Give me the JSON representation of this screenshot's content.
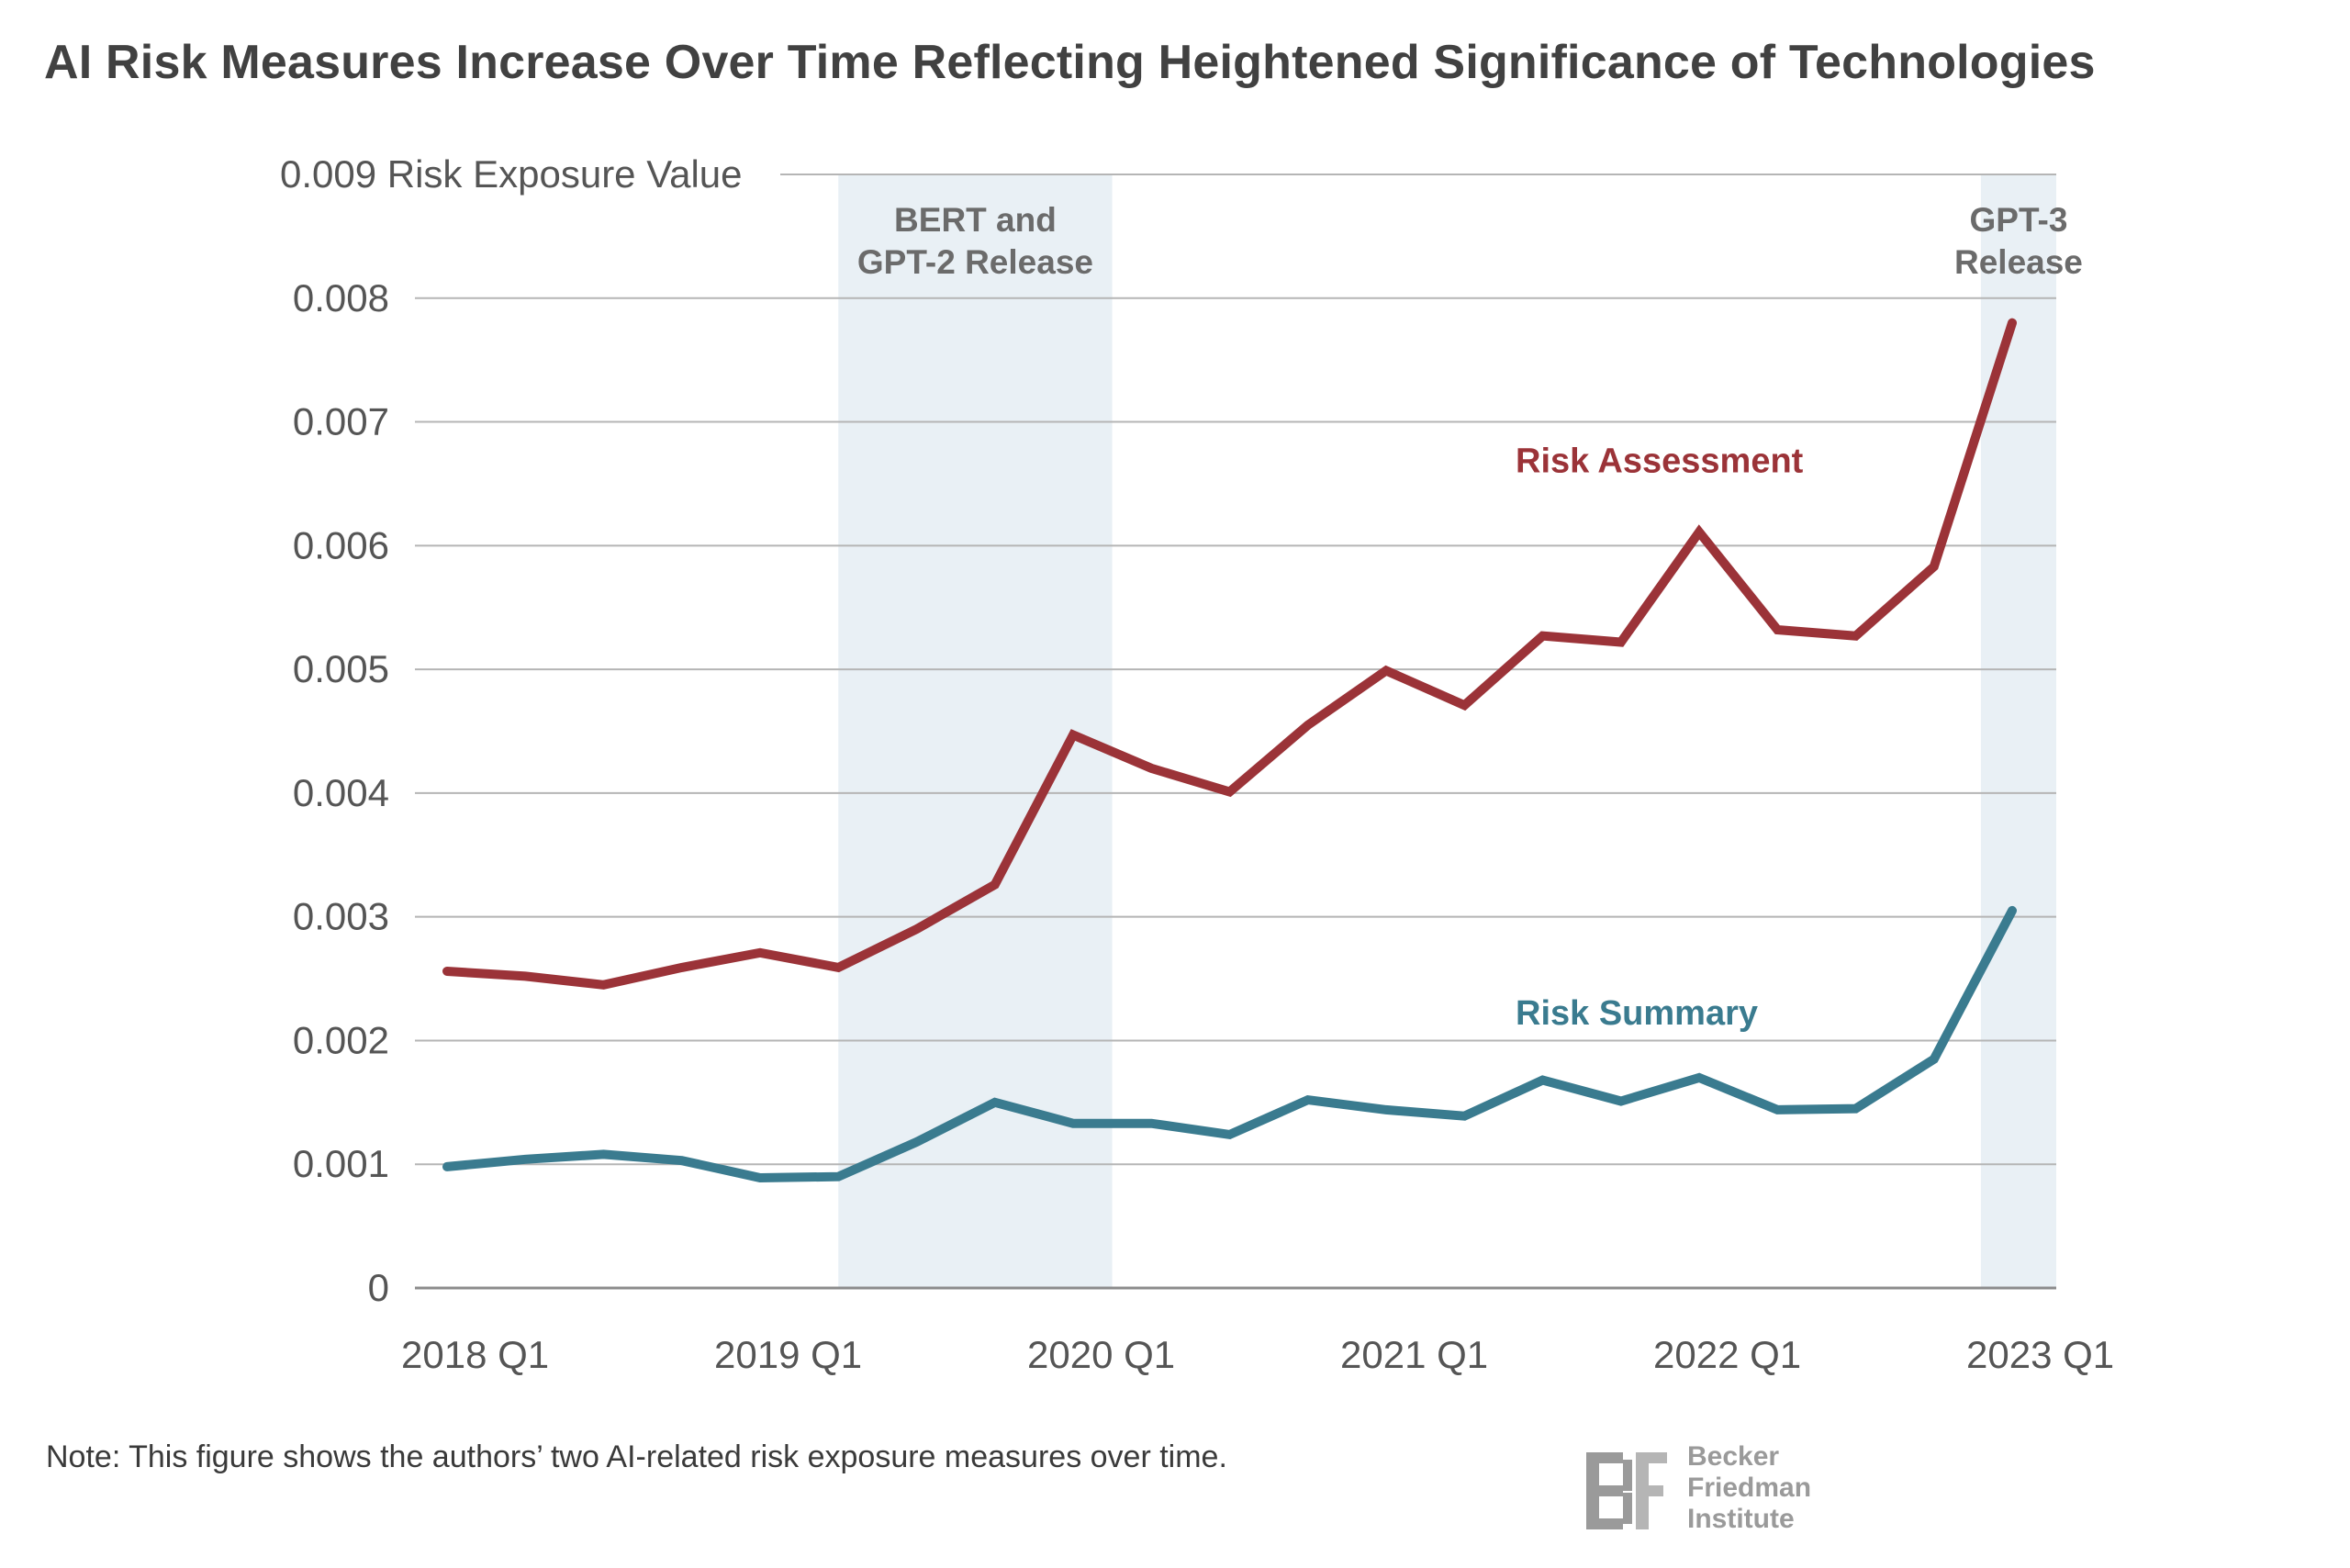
{
  "title": "AI Risk Measures Increase Over Time Reflecting Heightened Significance of Technologies",
  "note": "Note: This figure shows the authors’ two AI-related risk exposure measures over time.",
  "logo": {
    "line1": "Becker",
    "line2": "Friedman",
    "line3": "Institute"
  },
  "colors": {
    "assessment": "#9b3338",
    "summary": "#3a7b8f",
    "shade": "#e9f0f5",
    "grid": "#b5b5b5",
    "text": "#555555"
  },
  "chart_data": {
    "type": "line",
    "title": "AI Risk Measures Increase Over Time Reflecting Heightened Significance of Technologies",
    "xlabel": "",
    "ylabel": "Risk Exposure Value",
    "y_top_label": "0.009 Risk Exposure Value",
    "ylim": [
      0,
      0.009
    ],
    "yticks": [
      {
        "value": 0.009,
        "label": "0.009 Risk Exposure Value"
      },
      {
        "value": 0.008,
        "label": "0.008"
      },
      {
        "value": 0.007,
        "label": "0.007"
      },
      {
        "value": 0.006,
        "label": "0.006"
      },
      {
        "value": 0.005,
        "label": "0.005"
      },
      {
        "value": 0.004,
        "label": "0.004"
      },
      {
        "value": 0.003,
        "label": "0.003"
      },
      {
        "value": 0.002,
        "label": "0.002"
      },
      {
        "value": 0.001,
        "label": "0.001"
      },
      {
        "value": 0,
        "label": "0"
      }
    ],
    "x": [
      "2018 Q1",
      "2018 Q2",
      "2018 Q3",
      "2018 Q4",
      "2019 Q1",
      "2019 Q2",
      "2019 Q3",
      "2019 Q4",
      "2020 Q1",
      "2020 Q2",
      "2020 Q3",
      "2020 Q4",
      "2021 Q1",
      "2021 Q2",
      "2021 Q3",
      "2021 Q4",
      "2022 Q1",
      "2022 Q2",
      "2022 Q3",
      "2022 Q4",
      "2023 Q1"
    ],
    "xticks": [
      {
        "index": 0,
        "label": "2018 Q1"
      },
      {
        "index": 4,
        "label": "2019 Q1"
      },
      {
        "index": 8,
        "label": "2020 Q1"
      },
      {
        "index": 12,
        "label": "2021 Q1"
      },
      {
        "index": 16,
        "label": "2022 Q1"
      },
      {
        "index": 20,
        "label": "2023 Q1"
      }
    ],
    "series": [
      {
        "name": "Risk Assessment",
        "key": "assessment",
        "values": [
          0.00256,
          0.00252,
          0.00245,
          0.00259,
          0.00271,
          0.00259,
          0.0029,
          0.00326,
          0.00447,
          0.0042,
          0.00401,
          0.00455,
          0.00499,
          0.00471,
          0.00527,
          0.00522,
          0.00611,
          0.00532,
          0.00527,
          0.00583,
          0.0078
        ]
      },
      {
        "name": "Risk Summary",
        "key": "summary",
        "values": [
          0.00098,
          0.00104,
          0.00108,
          0.00103,
          0.00089,
          0.0009,
          0.00118,
          0.0015,
          0.00133,
          0.00133,
          0.00124,
          0.00152,
          0.00144,
          0.00139,
          0.00168,
          0.00151,
          0.0017,
          0.00144,
          0.00145,
          0.00185,
          0.00305
        ]
      }
    ],
    "series_labels": [
      {
        "key": "assessment",
        "text": "Risk Assessment",
        "anchor_index": 16,
        "anchor_value": 0.00668
      },
      {
        "key": "summary",
        "text": "Risk Summary",
        "anchor_index": 16,
        "anchor_value": 0.00222
      }
    ],
    "shaded_regions": [
      {
        "name": "bert-gpt2",
        "start_index": 5.0,
        "end_index": 8.5,
        "label_lines": [
          "BERT and",
          "GPT-2 Release"
        ]
      },
      {
        "name": "gpt3",
        "start_index": 19.6,
        "end_index": 21.6,
        "label_lines": [
          "GPT-3",
          "Release"
        ]
      }
    ],
    "grid": true
  }
}
